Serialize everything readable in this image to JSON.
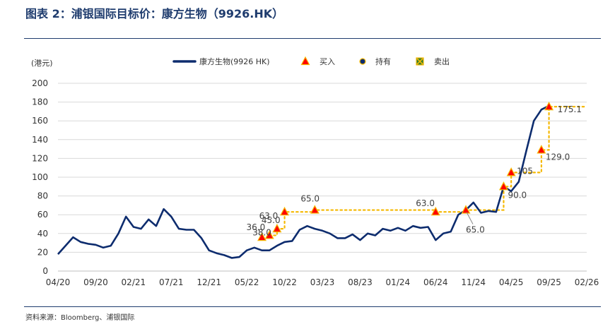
{
  "header": {
    "title": "图表 2：浦银国际目标价：康方生物（9926.HK）"
  },
  "footer": {
    "source": "资料来源：Bloomberg、浦银国际"
  },
  "colors": {
    "price_line": "#0d2c6e",
    "target_dots": "#f5b800",
    "buy_marker": "#ff0000",
    "buy_fill": "#f5b800",
    "hold_marker": "#0d2c6e",
    "sell_marker": "#2e7d32",
    "rule": "#1f3c6e"
  },
  "chart_data": {
    "type": "line",
    "ylabel": "(港元)",
    "ylim": [
      0,
      200
    ],
    "yticks": [
      0,
      20,
      40,
      60,
      80,
      100,
      120,
      140,
      160,
      180,
      200
    ],
    "xticks": [
      "04/20",
      "09/20",
      "02/21",
      "07/21",
      "12/21",
      "05/22",
      "10/22",
      "03/23",
      "08/23",
      "01/24",
      "06/24",
      "11/24",
      "04/25",
      "09/25",
      "02/26"
    ],
    "legend": {
      "position": "top",
      "entries": [
        "康方生物(9926 HK)",
        "买入",
        "持有",
        "卖出"
      ]
    },
    "series": [
      {
        "name": "康方生物(9926 HK)",
        "x": [
          "04/20",
          "05/20",
          "06/20",
          "07/20",
          "08/20",
          "09/20",
          "10/20",
          "11/20",
          "12/20",
          "01/21",
          "02/21",
          "03/21",
          "04/21",
          "05/21",
          "06/21",
          "07/21",
          "08/21",
          "09/21",
          "10/21",
          "11/21",
          "12/21",
          "01/22",
          "02/22",
          "03/22",
          "04/22",
          "05/22",
          "06/22",
          "07/22",
          "08/22",
          "09/22",
          "10/22",
          "11/22",
          "12/22",
          "01/23",
          "02/23",
          "03/23",
          "04/23",
          "05/23",
          "06/23",
          "07/23",
          "08/23",
          "09/23",
          "10/23",
          "11/23",
          "12/23",
          "01/24",
          "02/24",
          "03/24",
          "04/24",
          "05/24",
          "06/24",
          "07/24",
          "08/24",
          "09/24",
          "10/24",
          "11/24",
          "12/24",
          "01/25",
          "02/25",
          "03/25",
          "04/25",
          "05/25",
          "06/25",
          "07/25",
          "08/25",
          "09/25"
        ],
        "values": [
          18,
          27,
          36,
          31,
          29,
          28,
          25,
          27,
          40,
          58,
          47,
          45,
          55,
          48,
          66,
          58,
          45,
          44,
          44,
          35,
          22,
          19,
          17,
          14,
          15,
          22,
          25,
          22,
          22,
          27,
          31,
          32,
          44,
          48,
          45,
          43,
          40,
          35,
          35,
          39,
          33,
          40,
          38,
          45,
          43,
          46,
          43,
          48,
          46,
          47,
          33,
          40,
          42,
          60,
          65,
          73,
          62,
          64,
          63,
          90,
          85,
          95,
          128,
          160,
          172,
          176
        ]
      }
    ],
    "target_price_history": {
      "x": [
        "07/22",
        "08/22",
        "09/22",
        "10/22",
        "02/23",
        "06/24",
        "10/24",
        "03/25",
        "04/25",
        "08/25",
        "09/25"
      ],
      "values": [
        36.0,
        38.0,
        45.0,
        63.0,
        65.0,
        63.0,
        65.0,
        90.0,
        105,
        129.0,
        175.1
      ],
      "labels": [
        "36.0",
        "38.0",
        "45.0",
        "63.0",
        "65.0",
        "63.0",
        "65.0",
        "90.0",
        "105",
        "129.0",
        "175.1"
      ],
      "ratings": [
        "买入",
        "买入",
        "买入",
        "买入",
        "买入",
        "买入",
        "买入",
        "买入",
        "买入",
        "买入",
        "买入"
      ]
    }
  }
}
